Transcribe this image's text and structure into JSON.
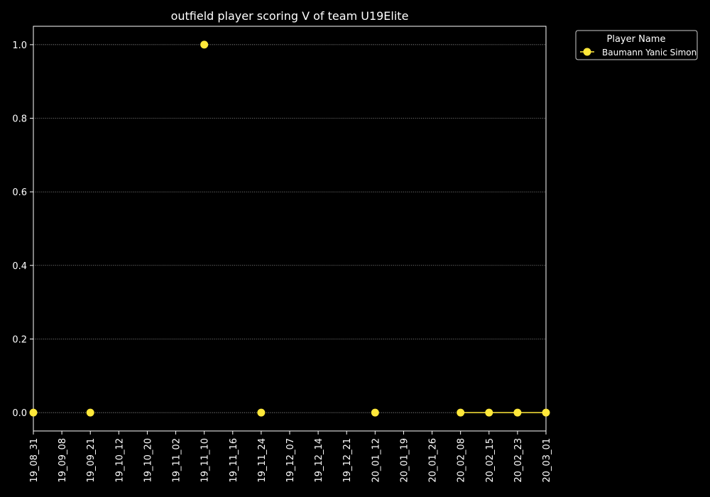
{
  "chart_data": {
    "type": "line",
    "title": "outfield player scoring V of team U19Elite",
    "xlabel": "",
    "ylabel": "",
    "x_categories": [
      "19_08_31",
      "19_09_08",
      "19_09_21",
      "19_10_12",
      "19_10_20",
      "19_11_02",
      "19_11_10",
      "19_11_16",
      "19_11_24",
      "19_12_07",
      "19_12_14",
      "19_12_21",
      "20_01_12",
      "20_01_19",
      "20_01_26",
      "20_02_08",
      "20_02_15",
      "20_02_23",
      "20_03_01"
    ],
    "ylim": [
      -0.05,
      1.05
    ],
    "yticks": [
      "0.0",
      "0.2",
      "0.4",
      "0.6",
      "0.8",
      "1.0"
    ],
    "ytick_values": [
      0.0,
      0.2,
      0.4,
      0.6,
      0.8,
      1.0
    ],
    "grid": "horizontal dotted",
    "legend": {
      "title": "Player Name",
      "position": "outside top-right"
    },
    "series": [
      {
        "name": "Baumann Yanic Simon",
        "color": "#ffe83a",
        "points": [
          {
            "x": "19_08_31",
            "y": 0
          },
          {
            "x": "19_09_21",
            "y": 0
          },
          {
            "x": "19_11_10",
            "y": 1
          },
          {
            "x": "19_11_24",
            "y": 0
          },
          {
            "x": "20_01_12",
            "y": 0
          },
          {
            "x": "20_02_08",
            "y": 0
          },
          {
            "x": "20_02_15",
            "y": 0
          },
          {
            "x": "20_02_23",
            "y": 0
          },
          {
            "x": "20_03_01",
            "y": 0
          }
        ],
        "connected_segments": [
          [
            "20_02_08",
            "20_02_15",
            "20_02_23",
            "20_03_01"
          ]
        ]
      }
    ]
  }
}
